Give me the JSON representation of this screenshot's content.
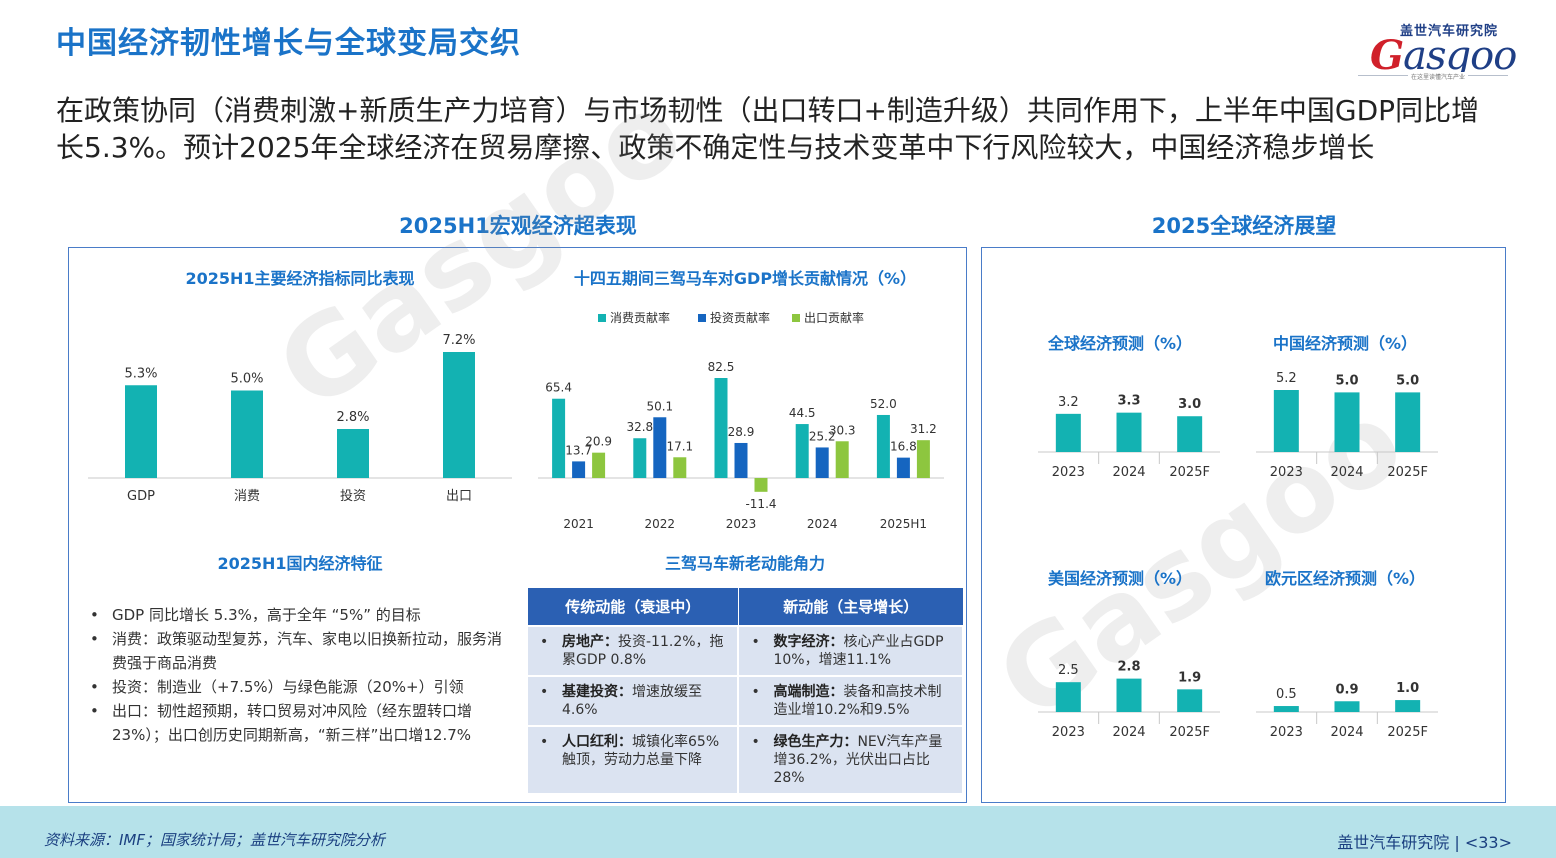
{
  "header": {
    "title": "中国经济韧性增长与全球变局交织",
    "logo_cn": "盖世汽车研究院",
    "logo_en_g": "G",
    "logo_en_rest": "asgoo",
    "logo_slogan": "在这里读懂汽车产业"
  },
  "summary": "在政策协同（消费刺激+新质生产力培育）与市场韧性（出口转口+制造升级）共同作用下，上半年中国GDP同比增长5.3%。预计2025年全球经济在贸易摩擦、政策不确定性与技术变革中下行风险较大，中国经济稳步增长",
  "left_section": {
    "title": "2025H1宏观经济超表现",
    "indicators_title": "2025H1主要经济指标同比表现",
    "troika_title": "十四五期间三驾马车对GDP增长贡献情况（%）",
    "domestic_title": "2025H1国内经济特征",
    "domestic_items": [
      "GDP 同比增长 5.3%，高于全年 “5%” 的目标",
      "消费：政策驱动型复苏，汽车、家电以旧换新拉动，服务消费强于商品消费",
      "投资：制造业（+7.5%）与绿色能源（20%+）引领",
      "出口：韧性超预期，转口贸易对冲风险（经东盟转口增23%）；出口创历史同期新高，“新三样”出口增12.7%"
    ],
    "power_title": "三驾马车新老动能角力",
    "power_table": {
      "headers": [
        "传统动能（衰退中）",
        "新动能（主导增长）"
      ],
      "rows": [
        [
          {
            "k": "房地产：",
            "v": "投资-11.2%，拖累GDP 0.8%"
          },
          {
            "k": "数字经济：",
            "v": "核心产业占GDP 10%，增速11.1%"
          }
        ],
        [
          {
            "k": "基建投资：",
            "v": "增速放缓至4.6%"
          },
          {
            "k": "高端制造：",
            "v": "装备和高技术制造业增10.2%和9.5%"
          }
        ],
        [
          {
            "k": "人口红利：",
            "v": "城镇化率65%触顶，劳动力总量下降"
          },
          {
            "k": "绿色生产力：",
            "v": "NEV汽车产量增36.2%，光伏出口占比28%"
          }
        ]
      ]
    }
  },
  "right_section": {
    "title": "2025全球经济展望"
  },
  "footer": {
    "source": "资料来源：IMF；国家统计局；盖世汽车研究院分析",
    "org": "盖世汽车研究院",
    "page": "<33>"
  },
  "colors": {
    "teal": "#13b2b2",
    "blue": "#1565c0",
    "green": "#8dc63f",
    "accent": "#1a73c8"
  },
  "chart_data": [
    {
      "id": "indicators",
      "type": "bar",
      "title": "2025H1主要经济指标同比表现",
      "categories": [
        "GDP",
        "消费",
        "投资",
        "出口"
      ],
      "values": [
        5.3,
        5.0,
        2.8,
        7.2
      ],
      "labels": [
        "5.3%",
        "5.0%",
        "2.8%",
        "7.2%"
      ],
      "ylim": [
        0,
        8
      ]
    },
    {
      "id": "troika",
      "type": "bar",
      "title": "十四五期间三驾马车对GDP增长贡献情况（%）",
      "categories": [
        "2021",
        "2022",
        "2023",
        "2024",
        "2025H1"
      ],
      "series": [
        {
          "name": "消费贡献率",
          "values": [
            65.4,
            32.8,
            82.5,
            44.5,
            52.0
          ],
          "labels": [
            "65.4",
            "32.8",
            "82.5",
            "44.5",
            "52.0"
          ]
        },
        {
          "name": "投资贡献率",
          "values": [
            13.7,
            50.1,
            28.9,
            25.2,
            16.8
          ],
          "labels": [
            "13.7",
            "50.1",
            "28.9",
            "25.2",
            "16.8"
          ]
        },
        {
          "name": "出口贡献率",
          "values": [
            20.9,
            17.1,
            -11.4,
            30.3,
            31.2
          ],
          "labels": [
            "20.9",
            "17.1",
            "-11.4",
            "30.3",
            "31.2"
          ]
        }
      ],
      "ylim": [
        -20,
        90
      ],
      "legend": "top"
    },
    {
      "id": "global",
      "type": "bar",
      "title": "全球经济预测（%）",
      "categories": [
        "2023",
        "2024",
        "2025F"
      ],
      "values": [
        3.2,
        3.3,
        3.0
      ],
      "labels": [
        "3.2",
        "3.3",
        "3.0"
      ],
      "ylim": [
        0,
        5.6
      ]
    },
    {
      "id": "china",
      "type": "bar",
      "title": "中国经济预测（%）",
      "categories": [
        "2023",
        "2024",
        "2025F"
      ],
      "values": [
        5.2,
        5.0,
        5.0
      ],
      "labels": [
        "5.2",
        "5.0",
        "5.0"
      ],
      "ylim": [
        0,
        5.6
      ]
    },
    {
      "id": "us",
      "type": "bar",
      "title": "美国经济预测（%）",
      "categories": [
        "2023",
        "2024",
        "2025F"
      ],
      "values": [
        2.5,
        2.8,
        1.9
      ],
      "labels": [
        "2.5",
        "2.8",
        "1.9"
      ],
      "ylim": [
        0,
        5.6
      ]
    },
    {
      "id": "euro",
      "type": "bar",
      "title": "欧元区经济预测（%）",
      "categories": [
        "2023",
        "2024",
        "2025F"
      ],
      "values": [
        0.5,
        0.9,
        1.0
      ],
      "labels": [
        "0.5",
        "0.9",
        "1.0"
      ],
      "ylim": [
        0,
        5.6
      ]
    }
  ]
}
